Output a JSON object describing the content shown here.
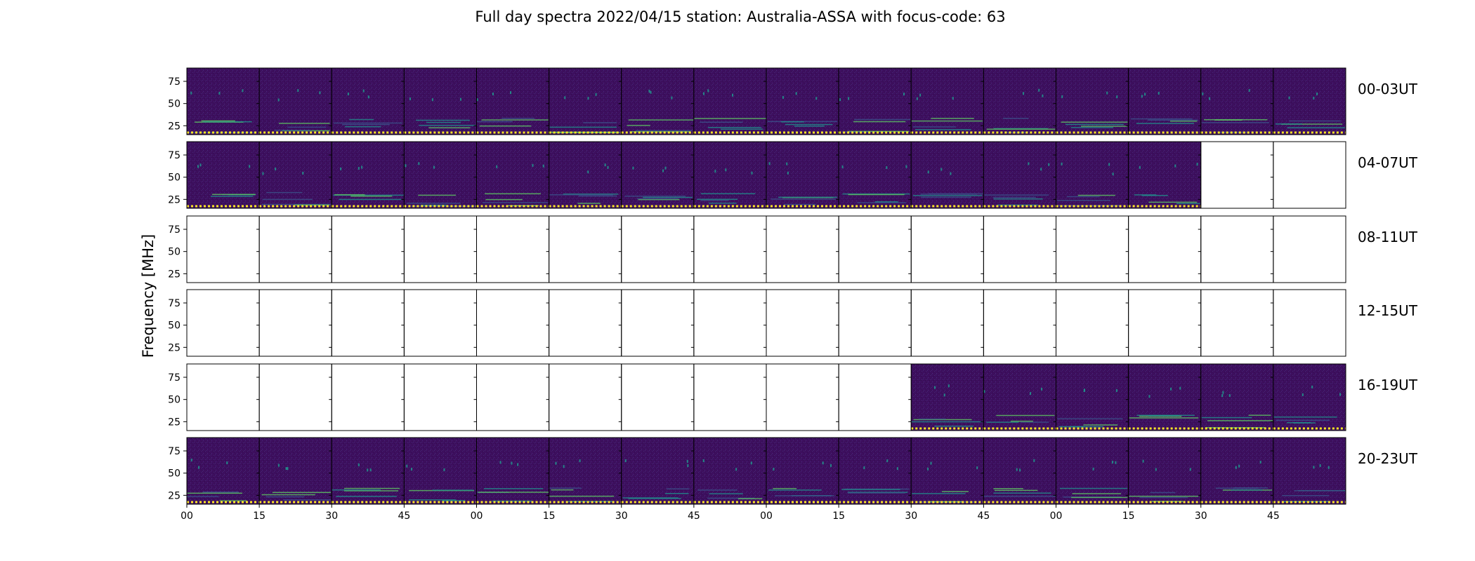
{
  "chart_data": {
    "type": "heatmap",
    "title": "Full day spectra 2022/04/15 station: Australia-ASSA with focus-code: 63",
    "ylabel": "Frequency [MHz]",
    "xlabel": "",
    "ylim": [
      15,
      90
    ],
    "y_ticks": [
      "75",
      "50",
      "25"
    ],
    "y_tick_values": [
      75,
      50,
      25
    ],
    "x_ticks": [
      "00",
      "15",
      "30",
      "45",
      "00",
      "15",
      "30",
      "45",
      "00",
      "15",
      "30",
      "45",
      "00",
      "15",
      "30",
      "45"
    ],
    "panels_per_row": 16,
    "panel_minutes": 15,
    "colormap": [
      "#440154",
      "#3b528b",
      "#21918c",
      "#5ec962",
      "#fde725"
    ],
    "rows": [
      {
        "label": "00-03UT",
        "filled": [
          1,
          1,
          1,
          1,
          1,
          1,
          1,
          1,
          1,
          1,
          1,
          1,
          1,
          1,
          1,
          1
        ]
      },
      {
        "label": "04-07UT",
        "filled": [
          1,
          1,
          1,
          1,
          1,
          1,
          1,
          1,
          1,
          1,
          1,
          1,
          1,
          1,
          0,
          0
        ]
      },
      {
        "label": "08-11UT",
        "filled": [
          0,
          0,
          0,
          0,
          0,
          0,
          0,
          0,
          0,
          0,
          0,
          0,
          0,
          0,
          0,
          0
        ]
      },
      {
        "label": "12-15UT",
        "filled": [
          0,
          0,
          0,
          0,
          0,
          0,
          0,
          0,
          0,
          0,
          0,
          0,
          0,
          0,
          0,
          0
        ]
      },
      {
        "label": "16-19UT",
        "filled": [
          0,
          0,
          0,
          0,
          0,
          0,
          0,
          0,
          0,
          0,
          1,
          1,
          1,
          1,
          1,
          1
        ]
      },
      {
        "label": "20-23UT",
        "filled": [
          1,
          1,
          1,
          1,
          1,
          1,
          1,
          1,
          1,
          1,
          1,
          1,
          1,
          1,
          1,
          1
        ]
      }
    ]
  }
}
